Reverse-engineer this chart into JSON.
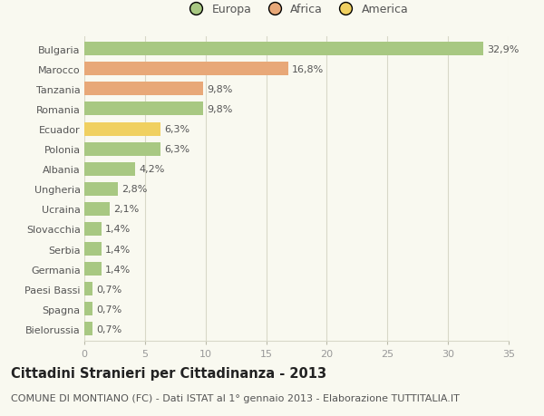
{
  "categories": [
    "Bulgaria",
    "Marocco",
    "Tanzania",
    "Romania",
    "Ecuador",
    "Polonia",
    "Albania",
    "Ungheria",
    "Ucraina",
    "Slovacchia",
    "Serbia",
    "Germania",
    "Paesi Bassi",
    "Spagna",
    "Bielorussia"
  ],
  "values": [
    32.9,
    16.8,
    9.8,
    9.8,
    6.3,
    6.3,
    4.2,
    2.8,
    2.1,
    1.4,
    1.4,
    1.4,
    0.7,
    0.7,
    0.7
  ],
  "labels": [
    "32,9%",
    "16,8%",
    "9,8%",
    "9,8%",
    "6,3%",
    "6,3%",
    "4,2%",
    "2,8%",
    "2,1%",
    "1,4%",
    "1,4%",
    "1,4%",
    "0,7%",
    "0,7%",
    "0,7%"
  ],
  "continents": [
    "Europa",
    "Africa",
    "Africa",
    "Europa",
    "America",
    "Europa",
    "Europa",
    "Europa",
    "Europa",
    "Europa",
    "Europa",
    "Europa",
    "Europa",
    "Europa",
    "Europa"
  ],
  "colors": {
    "Europa": "#a8c882",
    "Africa": "#e8a878",
    "America": "#f0d060"
  },
  "xlim": [
    0,
    35
  ],
  "xticks": [
    0,
    5,
    10,
    15,
    20,
    25,
    30,
    35
  ],
  "title": "Cittadini Stranieri per Cittadinanza - 2013",
  "subtitle": "COMUNE DI MONTIANO (FC) - Dati ISTAT al 1° gennaio 2013 - Elaborazione TUTTITALIA.IT",
  "background_color": "#f9f9f0",
  "grid_color": "#d8d8c8",
  "bar_height": 0.68,
  "title_fontsize": 10.5,
  "subtitle_fontsize": 8,
  "label_fontsize": 8,
  "tick_fontsize": 8,
  "legend_fontsize": 9,
  "text_color": "#555555",
  "title_color": "#222222"
}
